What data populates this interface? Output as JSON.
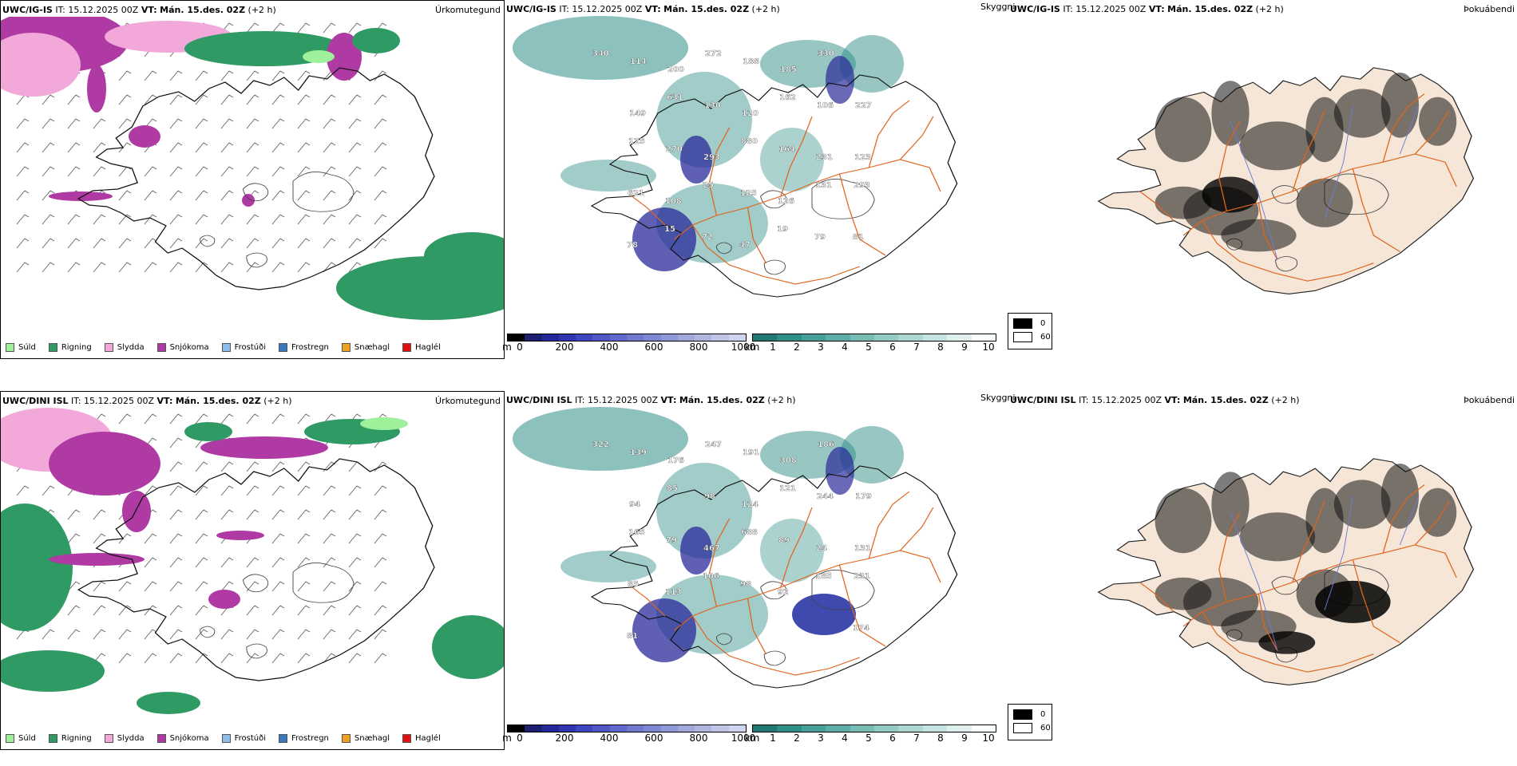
{
  "colors": {
    "sudl": "#9ef09a",
    "rigning": "#2f9a63",
    "slydda": "#f2a8d8",
    "snjokoma": "#b03aa3",
    "frostudi": "#8fbdea",
    "frostregn": "#3a78c0",
    "snaehagl": "#f0a020",
    "hagl": "#e01010",
    "roads": "#e0641c",
    "teal": "#2f8e88",
    "cloud_land": "#f5e6d8"
  },
  "precip_legend": [
    "Súld",
    "Rigning",
    "Slydda",
    "Snjókoma",
    "Frostúði",
    "Frostregn",
    "Snæhagl",
    "Haglél"
  ],
  "height_scale": {
    "unit": "m",
    "ticks": [
      "0",
      "200",
      "400",
      "600",
      "800",
      "1000"
    ]
  },
  "km_scale": {
    "unit": "km",
    "ticks": [
      "1",
      "2",
      "3",
      "4",
      "5",
      "6",
      "7",
      "8",
      "9",
      "10"
    ]
  },
  "cloud_scale": {
    "labels": [
      "0",
      "60"
    ]
  },
  "rows": [
    {
      "model": "UWC/IG-IS",
      "it_label": "IT:",
      "it_value": "15.12.2025 00Z",
      "vt_label": "VT:",
      "vt_value": "Mán. 15.des. 02Z",
      "lead": "(+2 h)",
      "precip_title": "Úrkomutegund",
      "vis_title": "Skyggni",
      "fog_title": "Þokuábendi",
      "vis_labels": [
        "340",
        "114",
        "200",
        "272",
        "188",
        "185",
        "330",
        "227",
        "149",
        "631",
        "130",
        "120",
        "162",
        "106",
        "123",
        "125",
        "270",
        "293",
        "880",
        "164",
        "231",
        "293",
        "621",
        "108",
        "25",
        "125",
        "126",
        "131",
        "81",
        "78",
        "15",
        "72",
        "47",
        "19",
        "79"
      ]
    },
    {
      "model": "UWC/DINI ISL",
      "it_label": "IT:",
      "it_value": "15.12.2025 00Z",
      "vt_label": "VT:",
      "vt_value": "Mán. 15.des. 02Z",
      "lead": "(+2 h)",
      "precip_title": "Úrkomutegund",
      "vis_title": "Skyggni",
      "fog_title": "Þokuábendi",
      "vis_labels": [
        "322",
        "139",
        "176",
        "247",
        "191",
        "308",
        "186",
        "179",
        "94",
        "85",
        "98",
        "124",
        "121",
        "244",
        "131",
        "165",
        "79",
        "467",
        "688",
        "89",
        "24",
        "231",
        "85",
        "113",
        "106",
        "98",
        "92",
        "185",
        "174",
        "81"
      ]
    }
  ]
}
